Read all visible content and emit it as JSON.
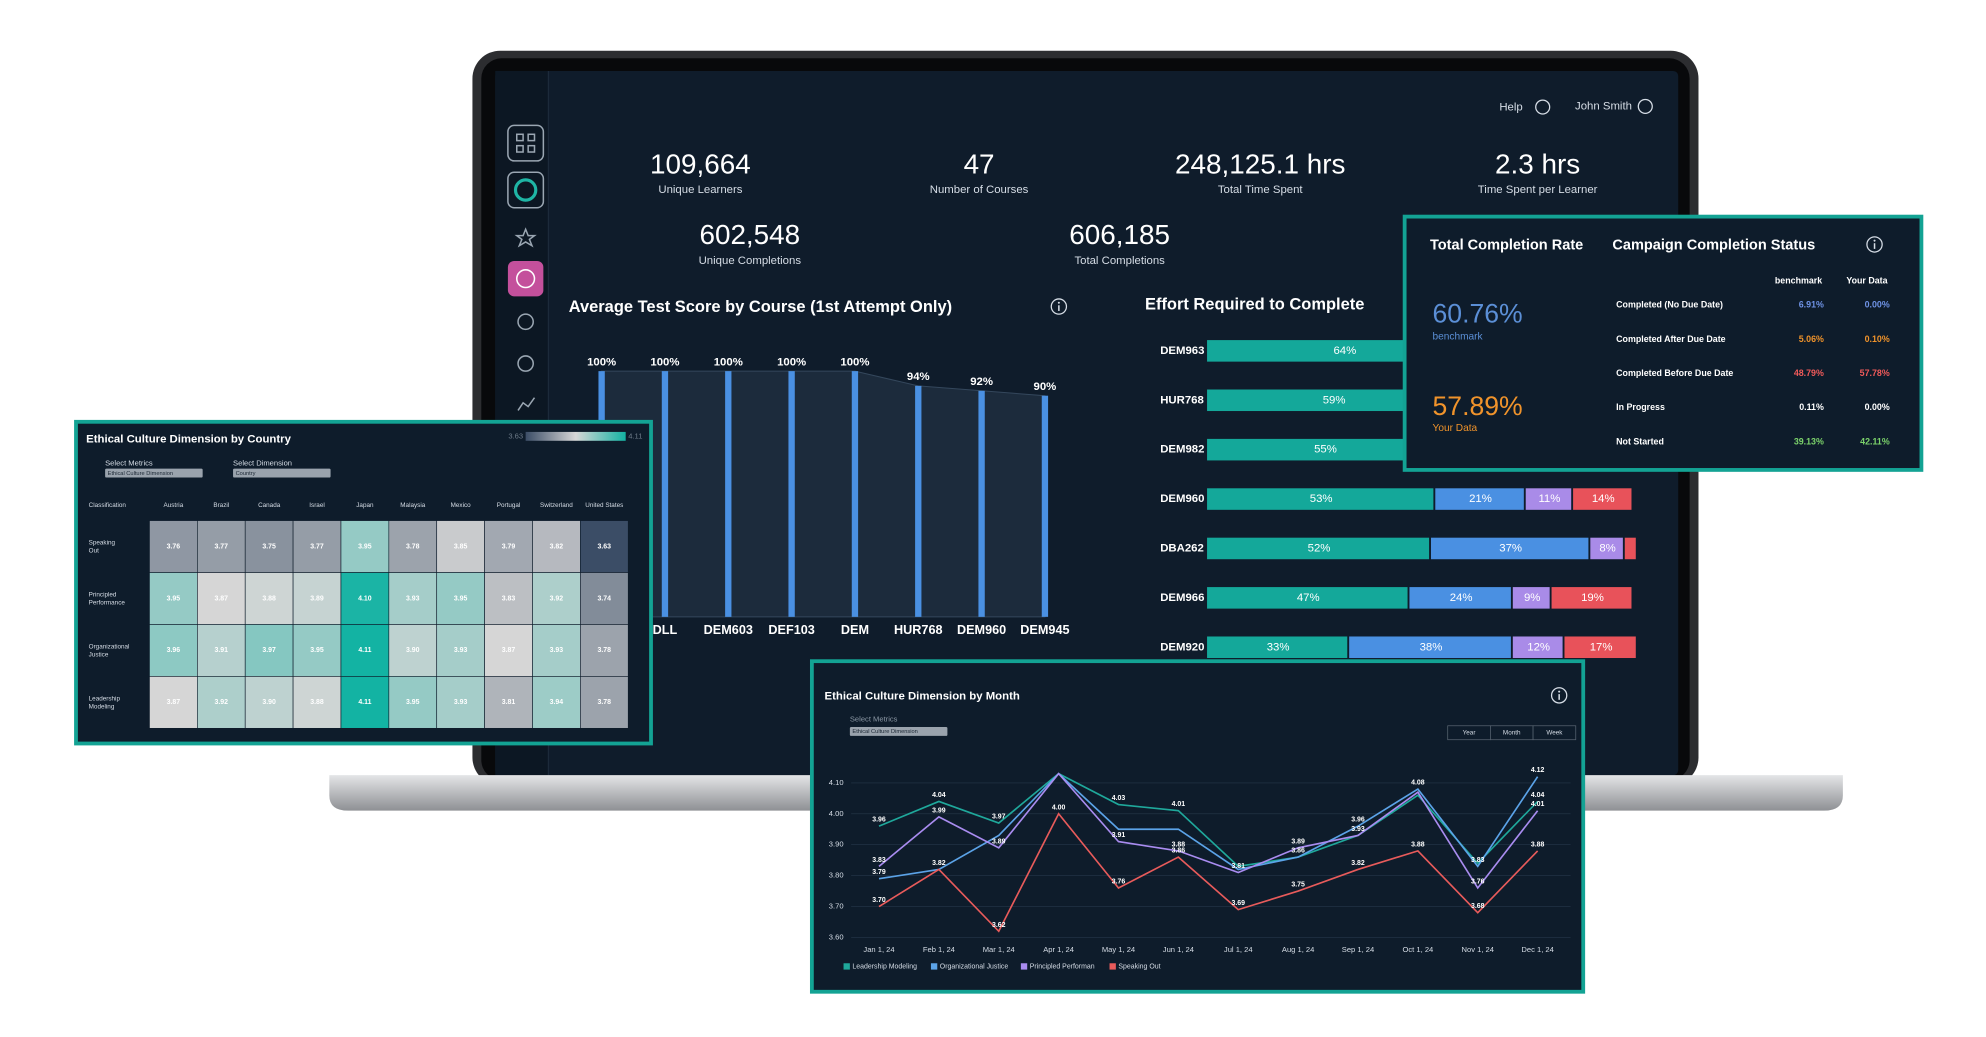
{
  "header": {
    "help": "Help",
    "user": "John Smith"
  },
  "kpis": [
    {
      "value": "109,664",
      "label": "Unique Learners"
    },
    {
      "value": "47",
      "label": "Number of Courses"
    },
    {
      "value": "248,125.1 hrs",
      "label": "Total Time Spent"
    },
    {
      "value": "2.3 hrs",
      "label": "Time Spent per Learner"
    },
    {
      "value": "602,548",
      "label": "Unique Completions"
    },
    {
      "value": "606,185",
      "label": "Total Completions"
    }
  ],
  "completion": {
    "title": "Total Completion Rate",
    "status_title": "Campaign Completion Status",
    "benchmark_rate": "60.76%",
    "benchmark_label": "benchmark",
    "your_rate": "57.89%",
    "your_label": "Your Data",
    "columns": [
      "benchmark",
      "Your Data"
    ],
    "rows": [
      {
        "label": "Completed (No Due Date)",
        "benchmark": "6.91%",
        "yours": "0.00%",
        "color": "#6f93e6"
      },
      {
        "label": "Completed After Due Date",
        "benchmark": "5.06%",
        "yours": "0.10%",
        "color": "#f0932b"
      },
      {
        "label": "Completed Before Due Date",
        "benchmark": "48.79%",
        "yours": "57.78%",
        "color": "#f05a5a"
      },
      {
        "label": "In Progress",
        "benchmark": "0.11%",
        "yours": "0.00%",
        "color": "#ffffff"
      },
      {
        "label": "Not Started",
        "benchmark": "39.13%",
        "yours": "42.11%",
        "color": "#7cd36b"
      }
    ]
  },
  "chart_data": [
    {
      "type": "bar",
      "title": "Average Test Score by Course (1st Attempt Only)",
      "categories": [
        null,
        "DLL",
        "DEM603",
        "DEF103",
        "DEM",
        "HUR768",
        "DEM960",
        "DEM945"
      ],
      "values": [
        100,
        100,
        100,
        100,
        100,
        94,
        92,
        90
      ],
      "value_labels": [
        "100%",
        "100%",
        "100%",
        "100%",
        "100%",
        "94%",
        "92%",
        "90%"
      ],
      "color": "#4a90e2",
      "ylim": [
        0,
        100
      ]
    },
    {
      "type": "stacked-hbar",
      "title": "Effort Required to Complete",
      "categories": [
        "DEM963",
        "HUR768",
        "DEM982",
        "DEM960",
        "DBA262",
        "DEM966",
        "DEM920"
      ],
      "series": [
        {
          "color": "#14a89a",
          "values": [
            64,
            59,
            55,
            53,
            52,
            47,
            33
          ],
          "value_labels": [
            "64%",
            "59%",
            "55%",
            "53%",
            "52%",
            "47%",
            "33%"
          ]
        },
        {
          "color": "#4a90e2",
          "values": [
            null,
            null,
            null,
            21,
            37,
            24,
            38
          ],
          "value_labels": [
            null,
            null,
            null,
            "21%",
            "37%",
            "24%",
            "38%"
          ]
        },
        {
          "color": "#a98be8",
          "values": [
            null,
            null,
            null,
            11,
            8,
            9,
            12
          ],
          "value_labels": [
            null,
            null,
            null,
            "11%",
            "8%",
            "9%",
            "12%"
          ]
        },
        {
          "color": "#e8525a",
          "values": [
            null,
            null,
            null,
            14,
            3,
            19,
            17
          ],
          "value_labels": [
            null,
            null,
            null,
            "14%",
            null,
            "19%",
            "17%"
          ]
        }
      ],
      "xlim": [
        0,
        100
      ]
    },
    {
      "type": "heatmap",
      "title": "Ethical Culture Dimension by Country",
      "metric_label": "Select Metrics",
      "metric_value": "Ethical Culture Dimension",
      "dimension_label": "Select Dimension",
      "dimension_value": "Country",
      "corner": "Classification",
      "x": [
        "Austria",
        "Brazil",
        "Canada",
        "Israel",
        "Japan",
        "Malaysia",
        "Mexico",
        "Portugal",
        "Switzerland",
        "United States"
      ],
      "y": [
        "Speaking Out",
        "Principled Performance",
        "Organizational Justice",
        "Leadership Modeling"
      ],
      "z": [
        [
          3.76,
          3.77,
          3.75,
          3.77,
          3.95,
          3.78,
          3.85,
          3.79,
          3.82,
          3.63
        ],
        [
          3.95,
          3.87,
          3.88,
          3.89,
          4.1,
          3.93,
          3.95,
          3.83,
          3.92,
          3.74
        ],
        [
          3.96,
          3.91,
          3.97,
          3.95,
          4.11,
          3.9,
          3.93,
          3.87,
          3.93,
          3.78
        ],
        [
          3.87,
          3.92,
          3.9,
          3.88,
          4.11,
          3.95,
          3.93,
          3.81,
          3.94,
          3.78
        ]
      ],
      "value_labels": [
        [
          "3.76",
          "3.77",
          "3.75",
          "3.77",
          "3.95",
          "3.78",
          "3.85",
          "3.79",
          "3.82",
          "3.63"
        ],
        [
          "3.95",
          "3.87",
          "3.88",
          "3.89",
          "4.10",
          "3.93",
          "3.95",
          "3.83",
          "3.92",
          "3.74"
        ],
        [
          "3.96",
          "3.91",
          "3.97",
          "3.95",
          "4.11",
          "3.90",
          "3.93",
          "3.87",
          "3.93",
          "3.78"
        ],
        [
          "3.87",
          "3.92",
          "3.90",
          "3.88",
          "4.11",
          "3.95",
          "3.93",
          "3.81",
          "3.94",
          "3.78"
        ]
      ],
      "zlim": [
        3.63,
        4.11
      ],
      "colorscale": [
        "#3b4d66",
        "#d6d6d6",
        "#13b3a3"
      ]
    },
    {
      "type": "line",
      "title": "Ethical Culture Dimension by Month",
      "metric_label": "Select Metrics",
      "metric_value": "Ethical Culture Dimension",
      "buttons": [
        "Year",
        "Month",
        "Week"
      ],
      "x": [
        "Jan 1, 24",
        "Feb 1, 24",
        "Mar 1, 24",
        "Apr 1, 24",
        "May 1, 24",
        "Jun 1, 24",
        "Jul 1, 24",
        "Aug 1, 24",
        "Sep 1, 24",
        "Oct 1, 24",
        "Nov 1, 24",
        "Dec 1, 24"
      ],
      "series": [
        {
          "name": "Leadership Modeling",
          "color": "#1fa89b",
          "values": [
            3.96,
            4.04,
            3.97,
            4.13,
            4.03,
            4.01,
            3.83,
            3.86,
            3.93,
            4.06,
            3.84,
            4.04
          ],
          "value_labels": [
            "3.96",
            "4.04",
            "3.97",
            null,
            "4.03",
            "4.01",
            null,
            null,
            null,
            null,
            null,
            "4.04"
          ]
        },
        {
          "name": "Organizational Justice",
          "color": "#5ba3e8",
          "values": [
            3.79,
            3.82,
            3.93,
            4.13,
            3.95,
            3.95,
            3.82,
            3.86,
            3.96,
            4.08,
            3.83,
            4.12
          ],
          "value_labels": [
            "3.79",
            "3.82",
            null,
            null,
            null,
            null,
            null,
            "3.86",
            "3.96",
            "4.08",
            "3.83",
            "4.12"
          ]
        },
        {
          "name": "Principled Performan",
          "color": "#a98cf0",
          "values": [
            3.83,
            3.99,
            3.89,
            4.13,
            3.91,
            3.88,
            3.81,
            3.89,
            3.93,
            4.07,
            3.76,
            4.01
          ],
          "value_labels": [
            "3.83",
            "3.99",
            "3.89",
            null,
            "3.91",
            "3.88",
            "3.81",
            "3.89",
            "3.93",
            null,
            "3.76",
            "4.01"
          ]
        },
        {
          "name": "Speaking Out",
          "color": "#e85b5b",
          "values": [
            3.7,
            3.82,
            3.62,
            4.0,
            3.76,
            3.86,
            3.69,
            3.75,
            3.82,
            3.88,
            3.68,
            3.88
          ],
          "value_labels": [
            "3.70",
            null,
            "3.62",
            "4.00",
            "3.76",
            "3.86",
            "3.69",
            "3.75",
            "3.82",
            "3.88",
            "3.68",
            "3.88"
          ]
        }
      ],
      "ylim": [
        3.58,
        4.17
      ],
      "yticks": [
        {
          "value": 3.6,
          "label": "3.60"
        },
        {
          "value": 3.7,
          "label": "3.70"
        },
        {
          "value": 3.8,
          "label": "3.80"
        },
        {
          "value": 3.9,
          "label": "3.90"
        },
        {
          "value": 4.0,
          "label": "4.00"
        },
        {
          "value": 4.1,
          "label": "4.10"
        }
      ]
    }
  ]
}
